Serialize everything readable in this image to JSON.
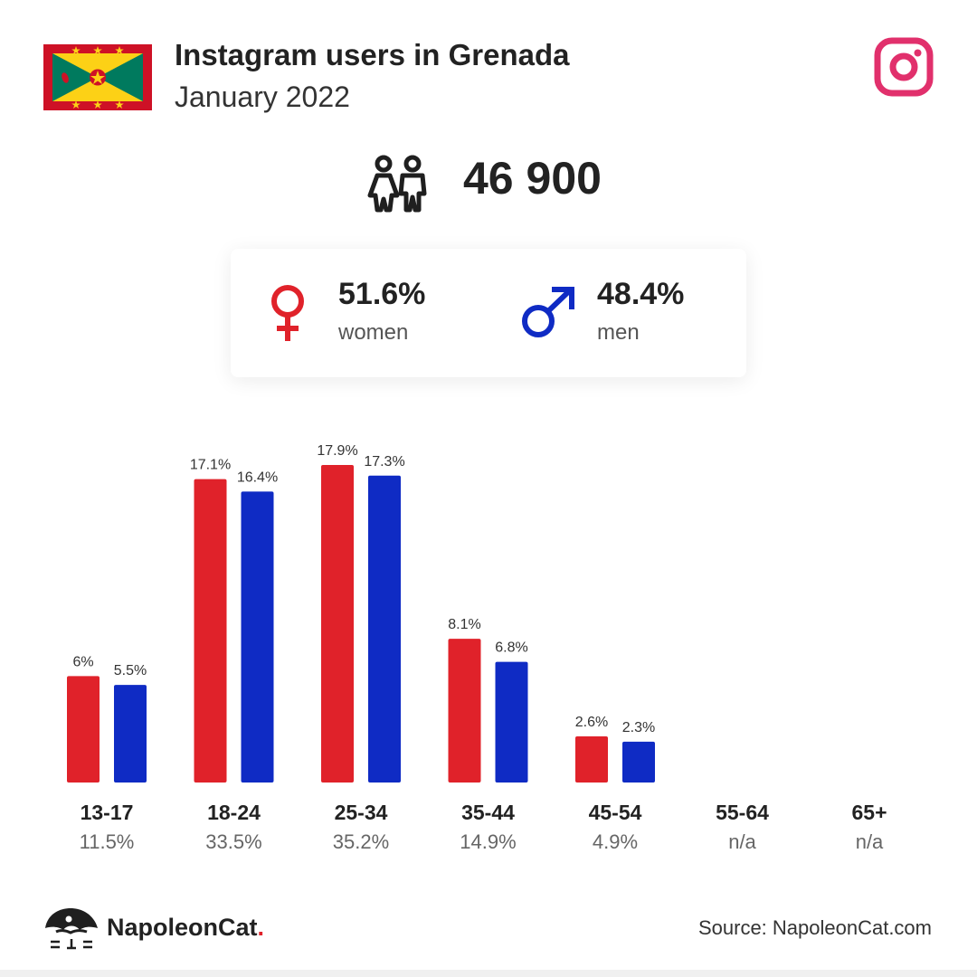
{
  "header": {
    "title": "Instagram users in Grenada",
    "subtitle": "January 2022"
  },
  "total": {
    "value": "46 900",
    "icon": "users-icon"
  },
  "gender": {
    "women": {
      "percent": "51.6%",
      "label": "women",
      "color": "#e0222a"
    },
    "men": {
      "percent": "48.4%",
      "label": "men",
      "color": "#0f2bc4"
    }
  },
  "colors": {
    "women": "#e0222a",
    "men": "#0f2bc4",
    "instagram": "#e1306c"
  },
  "chart_data": {
    "type": "bar",
    "categories": [
      "13-17",
      "18-24",
      "25-34",
      "35-44",
      "45-54",
      "55-64",
      "65+"
    ],
    "category_totals": [
      "11.5%",
      "33.5%",
      "35.2%",
      "14.9%",
      "4.9%",
      "n/a",
      "n/a"
    ],
    "series": [
      {
        "values": [
          6,
          17.1,
          17.9,
          8.1,
          2.6,
          null,
          null
        ],
        "labels": [
          "6%",
          "17.1%",
          "17.9%",
          "8.1%",
          "2.6%",
          "",
          ""
        ]
      },
      {
        "values": [
          5.5,
          16.4,
          17.3,
          6.8,
          2.3,
          null,
          null
        ],
        "labels": [
          "5.5%",
          "16.4%",
          "17.3%",
          "6.8%",
          "2.3%",
          "",
          ""
        ]
      }
    ],
    "ylim": [
      0,
      17.9
    ],
    "grid": false,
    "legend": "none"
  },
  "footer": {
    "brand_name": "NapoleonCat",
    "brand_dot": ".",
    "source": "Source: NapoleonCat.com"
  }
}
